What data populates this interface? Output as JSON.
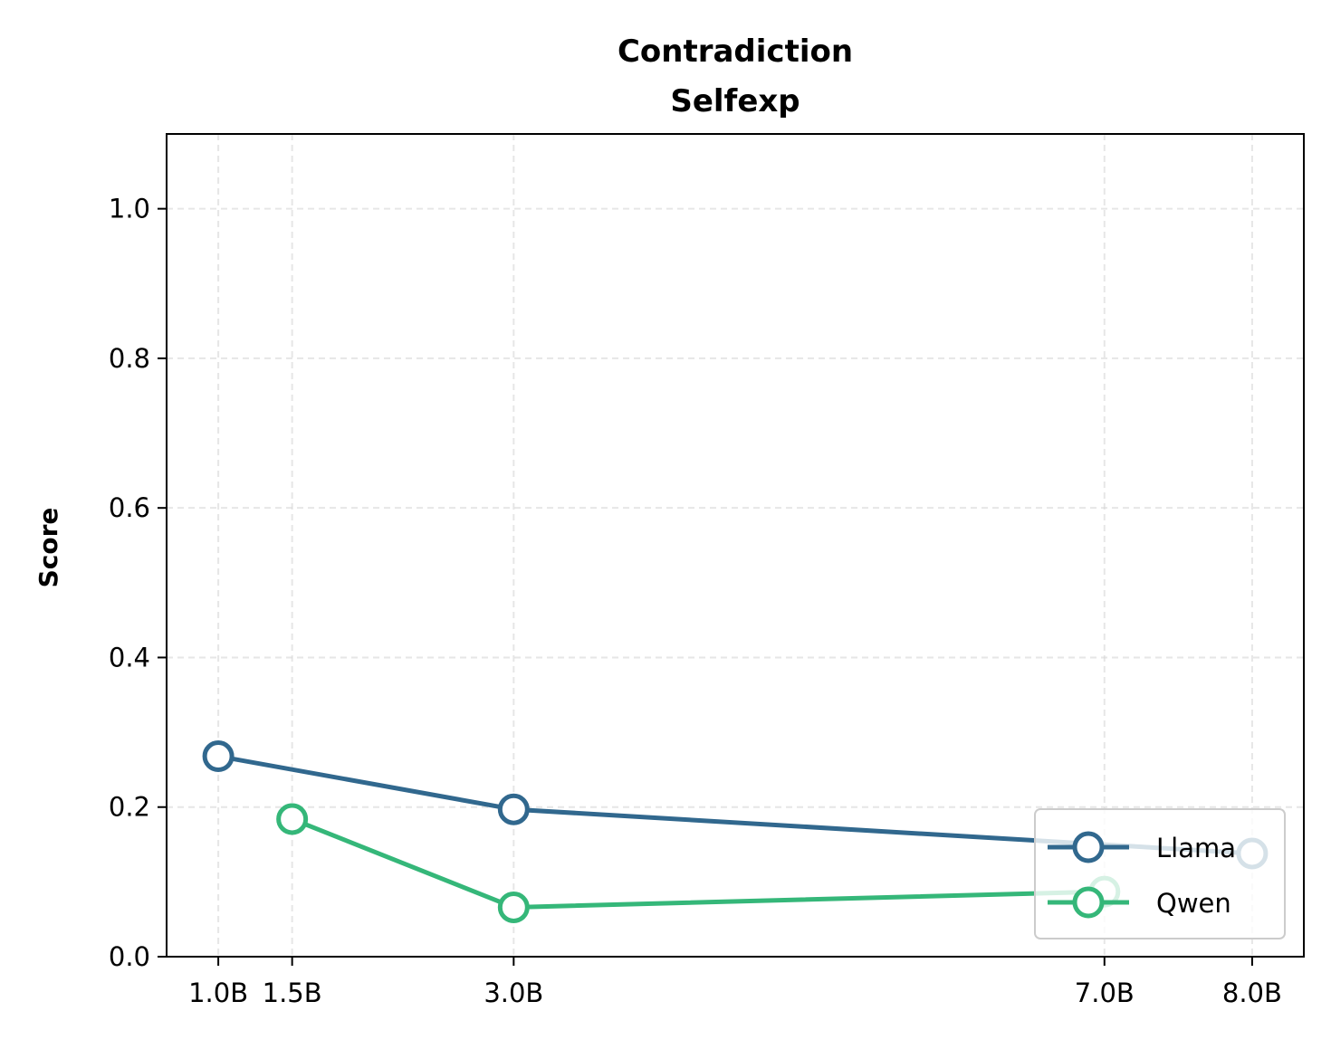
{
  "chart_data": {
    "type": "line",
    "title": [
      "Contradiction",
      "Selfexp"
    ],
    "xlabel": "",
    "ylabel": "Score",
    "x": [
      1.0,
      1.5,
      3.0,
      7.0,
      8.0
    ],
    "xtick_labels": [
      "1.0B",
      "1.5B",
      "3.0B",
      "7.0B",
      "8.0B"
    ],
    "xlim": [
      0.65,
      8.35
    ],
    "ylim": [
      0.0,
      1.1
    ],
    "yticks": [
      0.0,
      0.2,
      0.4,
      0.6,
      0.8,
      1.0
    ],
    "ytick_labels": [
      "0.0",
      "0.2",
      "0.4",
      "0.6",
      "0.8",
      "1.0"
    ],
    "grid": true,
    "legend_position": "lower-right",
    "series": [
      {
        "name": "Llama",
        "color": "#31688e",
        "x": [
          1.0,
          3.0,
          8.0
        ],
        "y": [
          0.268,
          0.197,
          0.138
        ]
      },
      {
        "name": "Qwen",
        "color": "#35b779",
        "x": [
          1.5,
          3.0,
          7.0
        ],
        "y": [
          0.184,
          0.066,
          0.087
        ]
      }
    ]
  }
}
